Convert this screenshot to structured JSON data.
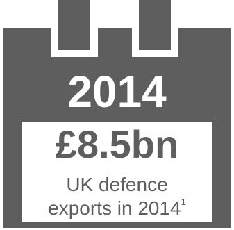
{
  "year": "2014",
  "amount": "£8.5bn",
  "caption": {
    "line1": "UK defence",
    "line2": "exports in 2014",
    "footnote_marker": "1"
  },
  "colors": {
    "background": "#ffffff",
    "calendar": "#5e5e5e",
    "card": "#ffffff",
    "text_on_calendar": "#ffffff",
    "text_on_card": "#5e5e5e"
  },
  "icons": {
    "calendar": "calendar-icon"
  }
}
